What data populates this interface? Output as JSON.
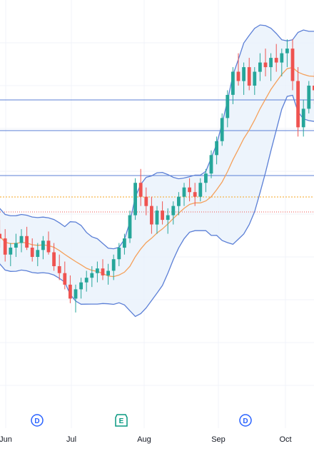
{
  "chart_data": {
    "type": "candlestick",
    "x_labels": [
      "Jun",
      "Jul",
      "Aug",
      "Sep",
      "Oct"
    ],
    "colors": {
      "up": "#26a69a",
      "down": "#ef5350",
      "middle_band": "#f5a05a",
      "outer_band": "#5b7fd6",
      "band_fill": "#e8f1fb",
      "level_line": "#5b7fd6",
      "dotted_orange": "#f5a623",
      "dotted_red": "#ef5350",
      "dividend": "#2962ff",
      "earnings": "#089981",
      "grid": "#f0f3fa"
    },
    "ohlc": [
      [
        68,
        72,
        62,
        64
      ],
      [
        64,
        70,
        58,
        62
      ],
      [
        62,
        66,
        52,
        55
      ],
      [
        55,
        60,
        50,
        58
      ],
      [
        58,
        64,
        54,
        60
      ],
      [
        60,
        66,
        56,
        63
      ],
      [
        63,
        67,
        57,
        58
      ],
      [
        58,
        62,
        52,
        54
      ],
      [
        54,
        60,
        50,
        57
      ],
      [
        57,
        63,
        53,
        61
      ],
      [
        61,
        65,
        55,
        56
      ],
      [
        56,
        60,
        48,
        50
      ],
      [
        50,
        55,
        44,
        47
      ],
      [
        47,
        52,
        40,
        42
      ],
      [
        42,
        46,
        34,
        36
      ],
      [
        36,
        42,
        30,
        40
      ],
      [
        40,
        45,
        36,
        43
      ],
      [
        43,
        48,
        39,
        45
      ],
      [
        45,
        50,
        41,
        47
      ],
      [
        47,
        52,
        43,
        49
      ],
      [
        49,
        53,
        44,
        46
      ],
      [
        46,
        51,
        42,
        48
      ],
      [
        48,
        55,
        44,
        53
      ],
      [
        53,
        60,
        50,
        58
      ],
      [
        58,
        64,
        55,
        62
      ],
      [
        62,
        74,
        60,
        72
      ],
      [
        72,
        88,
        70,
        86
      ],
      [
        86,
        92,
        76,
        80
      ],
      [
        80,
        84,
        72,
        76
      ],
      [
        76,
        80,
        64,
        68
      ],
      [
        68,
        76,
        64,
        74
      ],
      [
        74,
        78,
        68,
        70
      ],
      [
        70,
        75,
        64,
        72
      ],
      [
        72,
        78,
        68,
        76
      ],
      [
        76,
        82,
        72,
        80
      ],
      [
        80,
        86,
        76,
        84
      ],
      [
        84,
        88,
        78,
        82
      ],
      [
        82,
        86,
        76,
        80
      ],
      [
        80,
        88,
        78,
        86
      ],
      [
        86,
        92,
        82,
        90
      ],
      [
        90,
        100,
        88,
        98
      ],
      [
        98,
        106,
        94,
        104
      ],
      [
        104,
        116,
        102,
        114
      ],
      [
        114,
        126,
        110,
        124
      ],
      [
        124,
        136,
        120,
        134
      ],
      [
        134,
        142,
        128,
        130
      ],
      [
        130,
        138,
        124,
        136
      ],
      [
        136,
        140,
        126,
        128
      ],
      [
        128,
        136,
        124,
        134
      ],
      [
        134,
        142,
        130,
        138
      ],
      [
        138,
        144,
        132,
        136
      ],
      [
        136,
        142,
        130,
        140
      ],
      [
        140,
        146,
        134,
        138
      ],
      [
        138,
        144,
        132,
        142
      ],
      [
        142,
        148,
        136,
        144
      ],
      [
        144,
        148,
        126,
        130
      ],
      [
        130,
        136,
        106,
        110
      ],
      [
        110,
        122,
        106,
        118
      ],
      [
        118,
        130,
        116,
        128
      ],
      [
        128,
        134,
        120,
        126
      ]
    ]
  }
}
